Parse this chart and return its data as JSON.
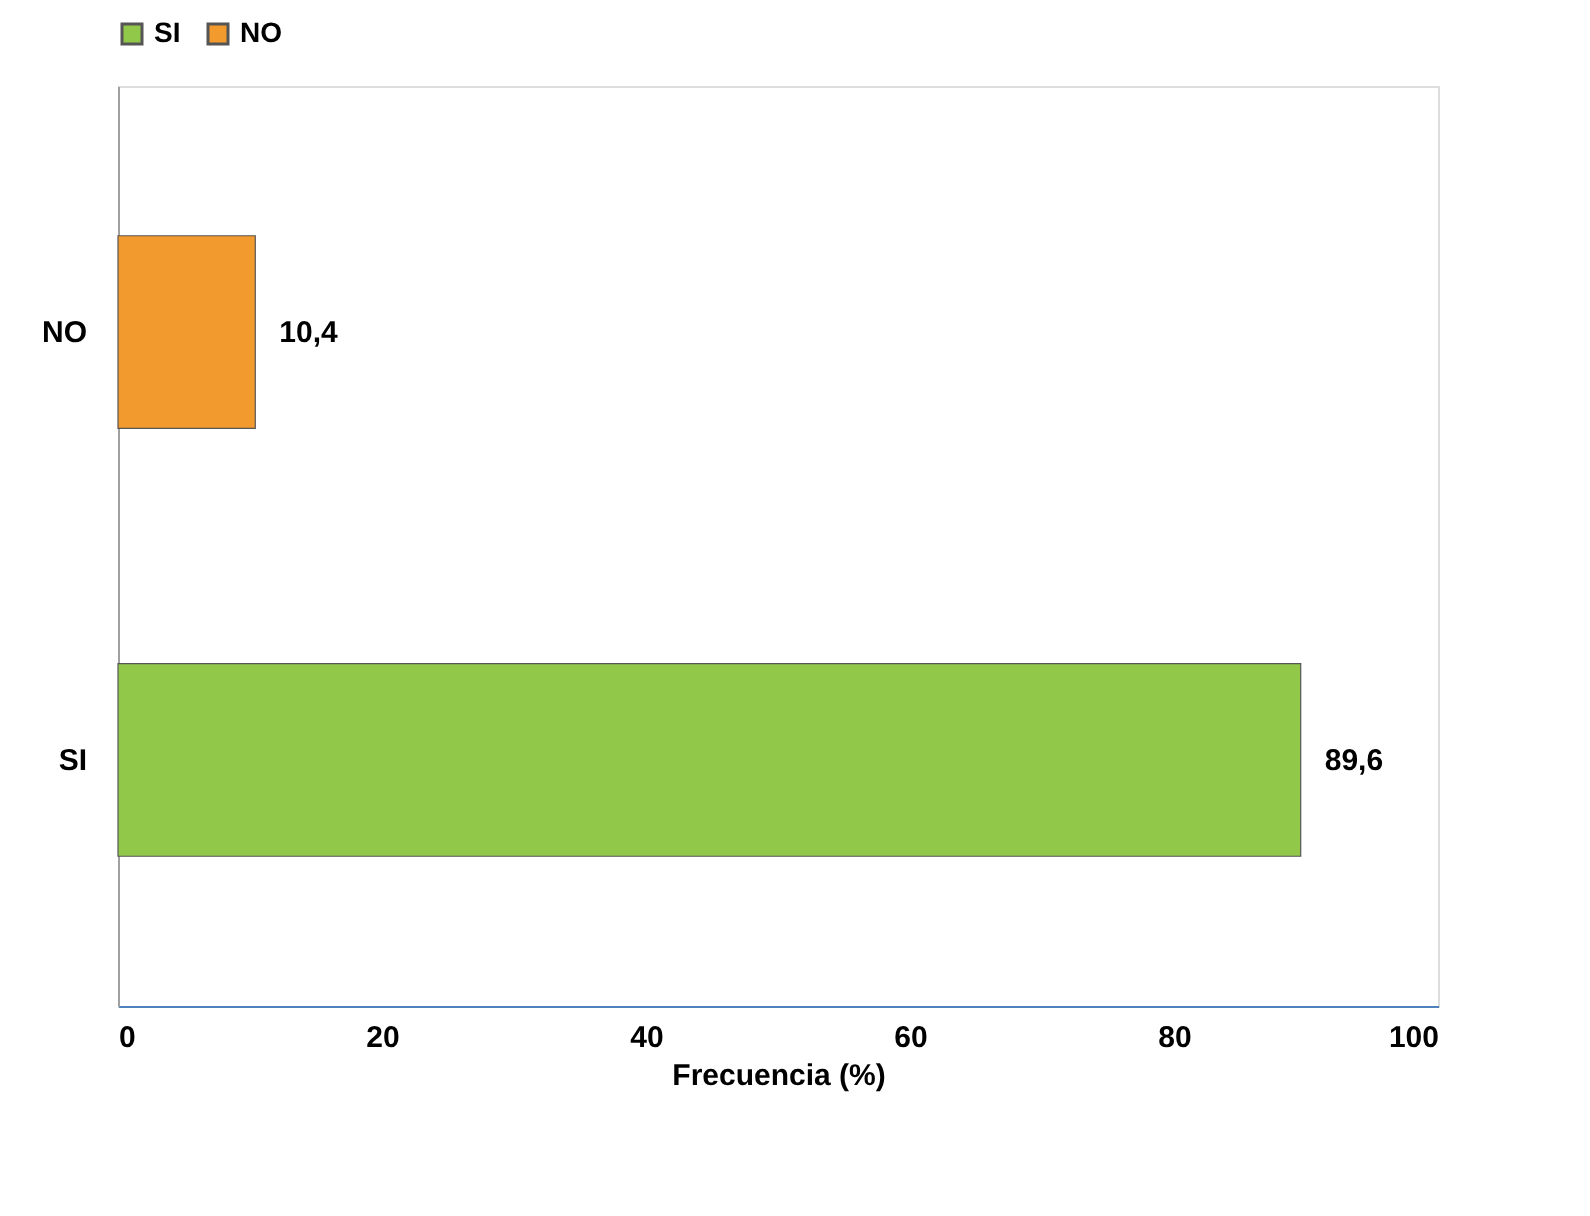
{
  "chart_data": {
    "type": "bar",
    "orientation": "horizontal",
    "categories": [
      "NO",
      "SI"
    ],
    "series": [
      {
        "name": "SI",
        "color": "#92c84a",
        "values": [
          null,
          89.6
        ],
        "value_labels": [
          null,
          "89,6"
        ]
      },
      {
        "name": "NO",
        "color": "#f39a2e",
        "values": [
          10.4,
          null
        ],
        "value_labels": [
          "10,4",
          null
        ]
      }
    ],
    "xlabel": "Frecuencia (%)",
    "xlim": [
      0,
      100
    ],
    "xticks": [
      0,
      20,
      40,
      60,
      80,
      100
    ],
    "grid": false,
    "legend": "top"
  }
}
